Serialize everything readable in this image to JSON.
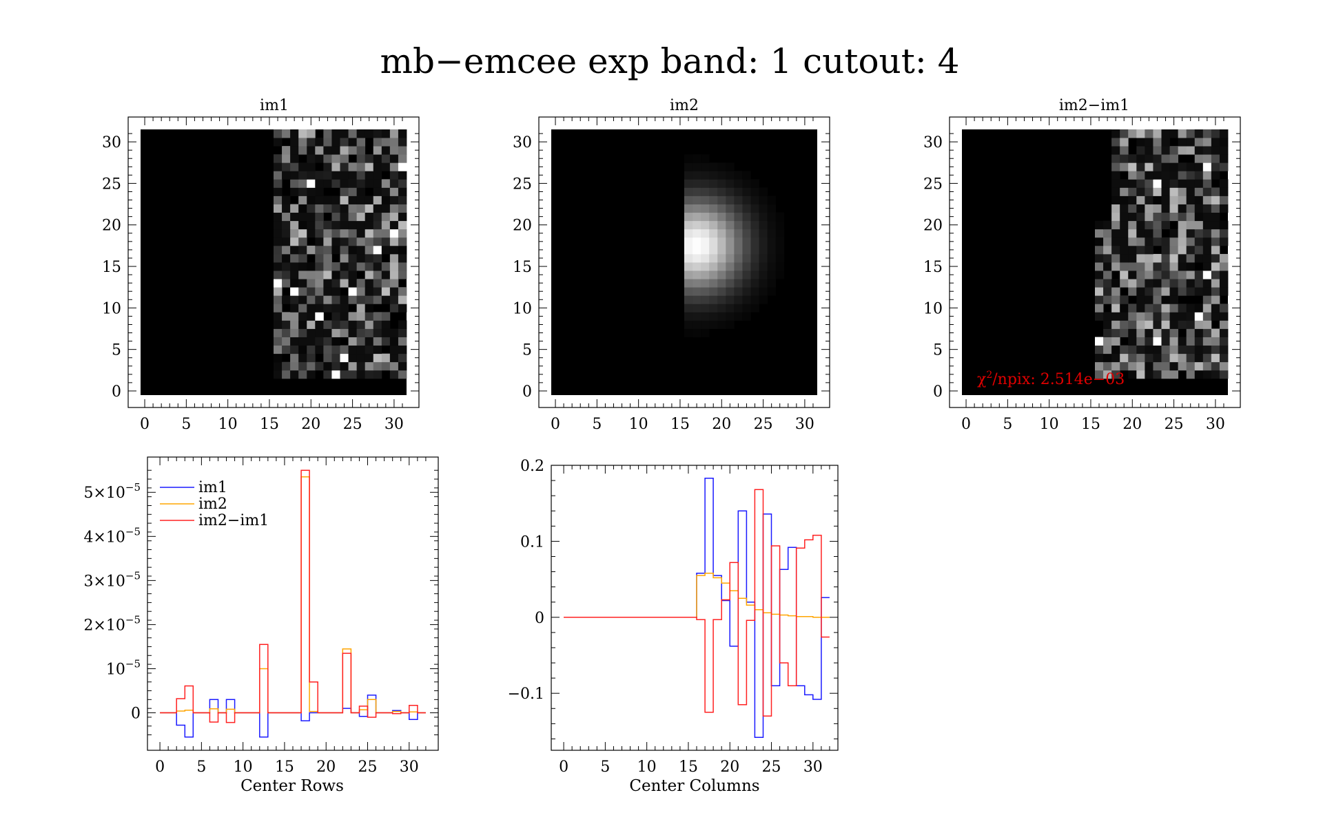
{
  "title": "mb−emcee exp band: 1 cutout: 4",
  "colors": {
    "im1": "#1a1aff",
    "im2": "#ffa500",
    "diff": "#ff2020",
    "annotation": "#e00000"
  },
  "chart_data": [
    {
      "type": "heatmap",
      "title": "im1",
      "colormap": "gray",
      "xlim": [
        -0.5,
        31.5
      ],
      "ylim": [
        -0.5,
        31.5
      ],
      "xticks": [
        "0",
        "5",
        "10",
        "15",
        "20",
        "25",
        "30"
      ],
      "yticks": [
        "0",
        "5",
        "10",
        "15",
        "20",
        "25",
        "30"
      ],
      "description_of_values": "nonzero noise only in columns 16-31, zero elsewhere"
    },
    {
      "type": "heatmap",
      "title": "im2",
      "colormap": "gray",
      "xlim": [
        -0.5,
        31.5
      ],
      "ylim": [
        -0.5,
        31.5
      ],
      "xticks": [
        "0",
        "5",
        "10",
        "15",
        "20",
        "25",
        "30"
      ],
      "yticks": [
        "0",
        "5",
        "10",
        "15",
        "20",
        "25",
        "30"
      ],
      "model": {
        "center": [
          17,
          17.5
        ],
        "sigma": 3.8,
        "nonzero_from_col": 16
      }
    },
    {
      "type": "heatmap",
      "title": "im2−im1",
      "colormap": "gray",
      "xlim": [
        -0.5,
        31.5
      ],
      "ylim": [
        -0.5,
        31.5
      ],
      "xticks": [
        "0",
        "5",
        "10",
        "15",
        "20",
        "25",
        "30"
      ],
      "yticks": [
        "0",
        "5",
        "10",
        "15",
        "20",
        "25",
        "30"
      ],
      "annotation": {
        "prefix": "χ",
        "sup": "2",
        "text": "/npix: 2.514e−03"
      }
    },
    {
      "type": "line",
      "step": true,
      "xlabel": "Center Rows",
      "xlim": [
        -1.5,
        33.5
      ],
      "ylim": [
        -8.5e-06,
        5.8e-05
      ],
      "xticks": [
        0,
        5,
        10,
        15,
        20,
        25,
        30
      ],
      "yticks": [
        {
          "value": 0,
          "base": "0",
          "exp": ""
        },
        {
          "value": 1e-05,
          "base": "10",
          "exp": "−5"
        },
        {
          "value": 2e-05,
          "base": "2×10",
          "exp": "−5"
        },
        {
          "value": 3e-05,
          "base": "3×10",
          "exp": "−5"
        },
        {
          "value": 4e-05,
          "base": "4×10",
          "exp": "−5"
        },
        {
          "value": 5e-05,
          "base": "5×10",
          "exp": "−5"
        }
      ],
      "legend": {
        "position": "top-left",
        "labels": [
          "im1",
          "im2",
          "im2−im1"
        ]
      },
      "x": [
        0,
        1,
        2,
        3,
        4,
        5,
        6,
        7,
        8,
        9,
        10,
        11,
        12,
        13,
        14,
        15,
        16,
        17,
        18,
        19,
        20,
        21,
        22,
        23,
        24,
        25,
        26,
        27,
        28,
        29,
        30,
        31
      ],
      "series": [
        {
          "name": "im1",
          "values": [
            0,
            0,
            -2.8e-06,
            -5.5e-06,
            0,
            0,
            3e-06,
            0,
            3e-06,
            0,
            0,
            0,
            -5.5e-06,
            0,
            0,
            0,
            0,
            -1.8e-06,
            0,
            0,
            0,
            0,
            1e-06,
            0,
            -8e-07,
            4e-06,
            0,
            0,
            5e-07,
            0,
            -1.5e-06,
            0
          ]
        },
        {
          "name": "im2",
          "values": [
            0,
            0,
            4e-07,
            6e-07,
            0,
            0,
            9e-07,
            0,
            8e-07,
            0,
            0,
            0,
            1e-05,
            0,
            0,
            0,
            0,
            5.35e-05,
            3e-07,
            0,
            0,
            0,
            1.45e-05,
            0,
            7e-07,
            3e-06,
            0,
            0,
            3e-07,
            0,
            2e-07,
            0
          ]
        },
        {
          "name": "im2−im1",
          "values": [
            0,
            0,
            3.2e-06,
            6.1e-06,
            0,
            0,
            -2.1e-06,
            0,
            -2.2e-06,
            0,
            0,
            0,
            1.55e-05,
            0,
            0,
            0,
            0,
            5.5e-05,
            7e-06,
            0,
            0,
            0,
            1.35e-05,
            0,
            1.5e-06,
            -1e-06,
            0,
            0,
            -2e-07,
            0,
            1.7e-06,
            0
          ]
        }
      ]
    },
    {
      "type": "line",
      "step": true,
      "xlabel": "Center Columns",
      "xlim": [
        -1.5,
        33.0
      ],
      "ylim": [
        -0.175,
        0.2
      ],
      "xticks": [
        0,
        5,
        10,
        15,
        20,
        25,
        30
      ],
      "yticks": [
        {
          "value": -0.1,
          "label": "−0.1"
        },
        {
          "value": 0,
          "label": "0"
        },
        {
          "value": 0.1,
          "label": "0.1"
        },
        {
          "value": 0.2,
          "label": "0.2"
        }
      ],
      "x": [
        0,
        1,
        2,
        3,
        4,
        5,
        6,
        7,
        8,
        9,
        10,
        11,
        12,
        13,
        14,
        15,
        16,
        17,
        18,
        19,
        20,
        21,
        22,
        23,
        24,
        25,
        26,
        27,
        28,
        29,
        30,
        31
      ],
      "series": [
        {
          "name": "im1",
          "values": [
            0,
            0,
            0,
            0,
            0,
            0,
            0,
            0,
            0,
            0,
            0,
            0,
            0,
            0,
            0,
            0,
            0.058,
            0.183,
            0.055,
            0.022,
            -0.038,
            0.14,
            0.02,
            -0.158,
            0.136,
            -0.09,
            0.063,
            0.092,
            -0.09,
            -0.102,
            -0.108,
            0.026
          ]
        },
        {
          "name": "im2",
          "values": [
            0,
            0,
            0,
            0,
            0,
            0,
            0,
            0,
            0,
            0,
            0,
            0,
            0,
            0,
            0,
            0,
            0.055,
            0.058,
            0.052,
            0.045,
            0.035,
            0.025,
            0.016,
            0.01,
            0.006,
            0.004,
            0.003,
            0.002,
            0.001,
            0.001,
            0.0,
            0.0
          ]
        },
        {
          "name": "im2−im1",
          "values": [
            0,
            0,
            0,
            0,
            0,
            0,
            0,
            0,
            0,
            0,
            0,
            0,
            0,
            0,
            0,
            0,
            -0.003,
            -0.125,
            -0.003,
            0.023,
            0.072,
            -0.115,
            -0.004,
            0.168,
            -0.13,
            0.094,
            -0.06,
            -0.09,
            0.091,
            0.102,
            0.108,
            -0.026
          ]
        }
      ]
    }
  ]
}
